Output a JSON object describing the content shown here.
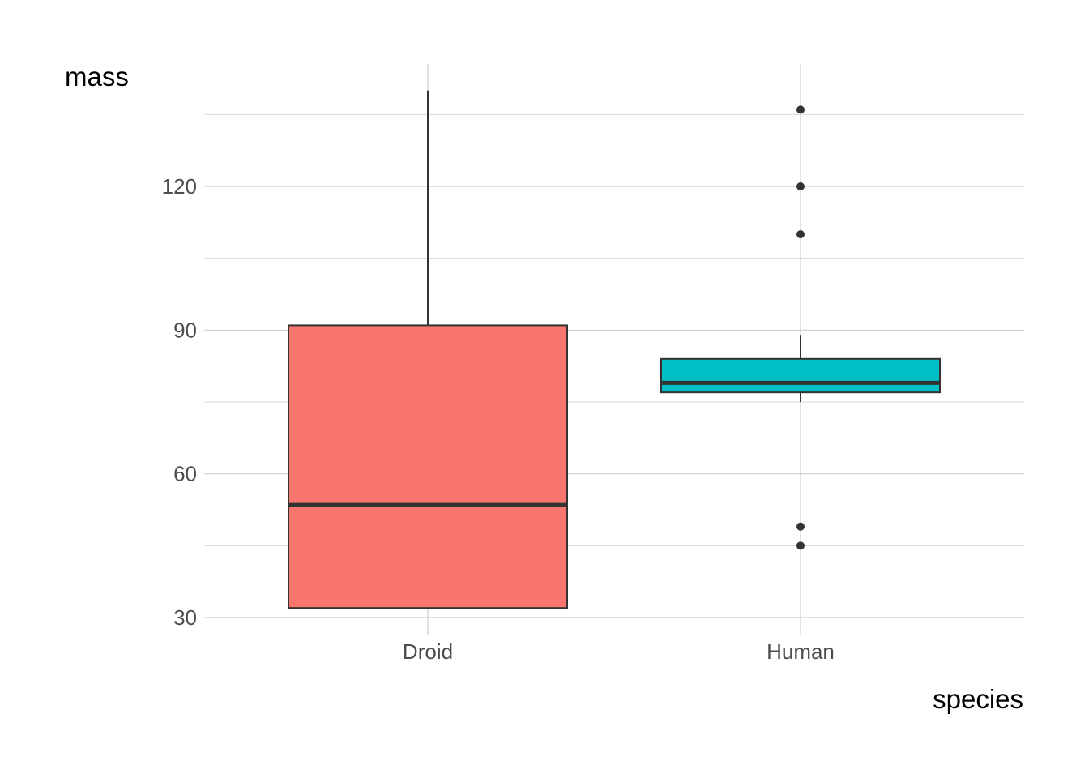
{
  "chart_data": {
    "type": "boxplot",
    "xlabel": "species",
    "ylabel": "mass",
    "categories": [
      "Droid",
      "Human"
    ],
    "ylim": [
      28,
      145
    ],
    "yticks": [
      30,
      60,
      90,
      120
    ],
    "y_minor_gridlines": [
      45,
      75,
      105,
      135
    ],
    "grid": true,
    "legend": "none",
    "boxes": [
      {
        "category": "Droid",
        "min": 32,
        "q1": 32,
        "median": 53.5,
        "q3": 91,
        "max": 140,
        "outliers": [],
        "color": "#F8766D"
      },
      {
        "category": "Human",
        "min": 75,
        "q1": 77,
        "median": 79,
        "q3": 84,
        "max": 89,
        "outliers": [
          136,
          120,
          110,
          49,
          45
        ],
        "color": "#00BFC4"
      }
    ]
  }
}
